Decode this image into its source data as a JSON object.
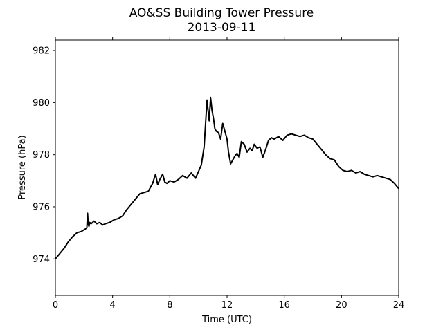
{
  "chart_data": {
    "type": "line",
    "title": "AO&SS Building Tower Pressure",
    "subtitle": "2013-09-11",
    "xlabel": "Time (UTC)",
    "ylabel": "Pressure (hPa)",
    "xlim": [
      0,
      24
    ],
    "ylim": [
      972.6,
      982.4
    ],
    "xticks": [
      0,
      4,
      8,
      12,
      16,
      20,
      24
    ],
    "yticks": [
      974,
      976,
      978,
      980,
      982
    ],
    "grid": false,
    "legend": "none",
    "line_color": "#000000",
    "series": [
      {
        "x": [
          0,
          0.3,
          0.6,
          0.9,
          1.2,
          1.5,
          1.8,
          2.1,
          2.2,
          2.25,
          2.3,
          2.35,
          2.4,
          2.5,
          2.7,
          2.9,
          3.1,
          3.3,
          3.5,
          3.8,
          4.1,
          4.4,
          4.7,
          5.0,
          5.3,
          5.6,
          5.9,
          6.2,
          6.5,
          6.8,
          7.0,
          7.15,
          7.3,
          7.5,
          7.65,
          7.8,
          8.0,
          8.3,
          8.6,
          8.9,
          9.2,
          9.5,
          9.8,
          10.0,
          10.2,
          10.4,
          10.6,
          10.75,
          10.85,
          10.95,
          11.05,
          11.15,
          11.25,
          11.4,
          11.55,
          11.7,
          11.85,
          12.0,
          12.1,
          12.25,
          12.4,
          12.55,
          12.7,
          12.85,
          13.0,
          13.2,
          13.4,
          13.6,
          13.75,
          13.9,
          14.1,
          14.3,
          14.5,
          14.7,
          14.9,
          15.1,
          15.3,
          15.6,
          15.9,
          16.2,
          16.5,
          16.8,
          17.1,
          17.4,
          17.7,
          18.0,
          18.3,
          18.6,
          18.9,
          19.2,
          19.5,
          19.8,
          20.1,
          20.4,
          20.7,
          21.0,
          21.3,
          21.6,
          21.9,
          22.2,
          22.5,
          22.8,
          23.1,
          23.4,
          23.7,
          24.0
        ],
        "y": [
          974.0,
          974.2,
          974.4,
          974.65,
          974.85,
          975.0,
          975.05,
          975.15,
          975.2,
          975.75,
          975.3,
          975.25,
          975.4,
          975.35,
          975.45,
          975.35,
          975.4,
          975.3,
          975.35,
          975.4,
          975.5,
          975.55,
          975.65,
          975.9,
          976.1,
          976.3,
          976.5,
          976.55,
          976.6,
          976.9,
          977.25,
          976.85,
          977.05,
          977.25,
          976.95,
          976.9,
          977.0,
          976.95,
          977.05,
          977.2,
          977.1,
          977.3,
          977.1,
          977.35,
          977.6,
          978.3,
          980.1,
          979.3,
          980.2,
          979.7,
          979.4,
          979.0,
          978.9,
          978.85,
          978.6,
          979.2,
          978.9,
          978.6,
          978.1,
          977.65,
          977.8,
          977.95,
          978.05,
          977.9,
          978.5,
          978.4,
          978.1,
          978.25,
          978.15,
          978.4,
          978.25,
          978.3,
          977.9,
          978.2,
          978.55,
          978.65,
          978.6,
          978.7,
          978.55,
          978.75,
          978.8,
          978.75,
          978.7,
          978.75,
          978.65,
          978.6,
          978.4,
          978.2,
          978.0,
          977.85,
          977.8,
          977.55,
          977.4,
          977.35,
          977.4,
          977.3,
          977.35,
          977.25,
          977.2,
          977.15,
          977.2,
          977.15,
          977.1,
          977.05,
          976.9,
          976.7
        ]
      }
    ]
  }
}
